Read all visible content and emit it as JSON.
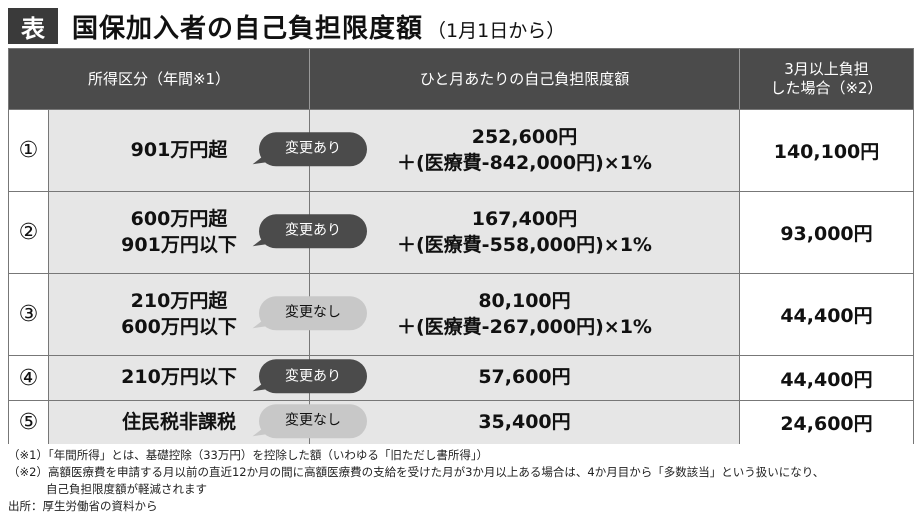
{
  "title": {
    "tag": "表",
    "main": "国保加入者の自己負担限度額",
    "sub": "（1月1日から）"
  },
  "table": {
    "headers": {
      "label": "所得区分（年間※1）",
      "limit": "ひと月あたりの自己負担限度額",
      "over_line1": "3月以上負担",
      "over_line2": "した場合（※2）"
    },
    "rows": [
      {
        "num": "①",
        "label_line1": "901万円超",
        "label_line2": "",
        "badge": "変更あり",
        "changed": true,
        "limit_line1": "252,600円",
        "limit_line2": "＋(医療費-842,000円)×1%",
        "over": "140,100円"
      },
      {
        "num": "②",
        "label_line1": "600万円超",
        "label_line2": "901万円以下",
        "badge": "変更あり",
        "changed": true,
        "limit_line1": "167,400円",
        "limit_line2": "＋(医療費-558,000円)×1%",
        "over": "93,000円"
      },
      {
        "num": "③",
        "label_line1": "210万円超",
        "label_line2": "600万円以下",
        "badge": "変更なし",
        "changed": false,
        "limit_line1": "80,100円",
        "limit_line2": "＋(医療費-267,000円)×1%",
        "over": "44,400円"
      },
      {
        "num": "④",
        "label_line1": "210万円以下",
        "label_line2": "",
        "badge": "変更あり",
        "changed": true,
        "limit_line1": "57,600円",
        "limit_line2": "",
        "over": "44,400円"
      },
      {
        "num": "⑤",
        "label_line1": "住民税非課税",
        "label_line2": "",
        "badge": "変更なし",
        "changed": false,
        "limit_line1": "35,400円",
        "limit_line2": "",
        "over": "24,600円"
      }
    ]
  },
  "notes": {
    "note1": "（※1）「年間所得」とは、基礎控除（33万円）を控除した額（いわゆる「旧ただし書所得」）",
    "note2": "（※2）高額医療費を申請する月以前の直近12か月の間に高額医療費の支給を受けた月が3か月以上ある場合は、4か月目から「多数該当」という扱いになり、",
    "note2_cont": "自己負担限度額が軽減されます",
    "source": "出所：厚生労働省の資料から"
  },
  "colors": {
    "header_bg": "#4b4b4b",
    "row_shade": "#e6e6e6",
    "badge_changed": "#4b4b4b",
    "badge_unchanged": "#c8c8c8"
  }
}
